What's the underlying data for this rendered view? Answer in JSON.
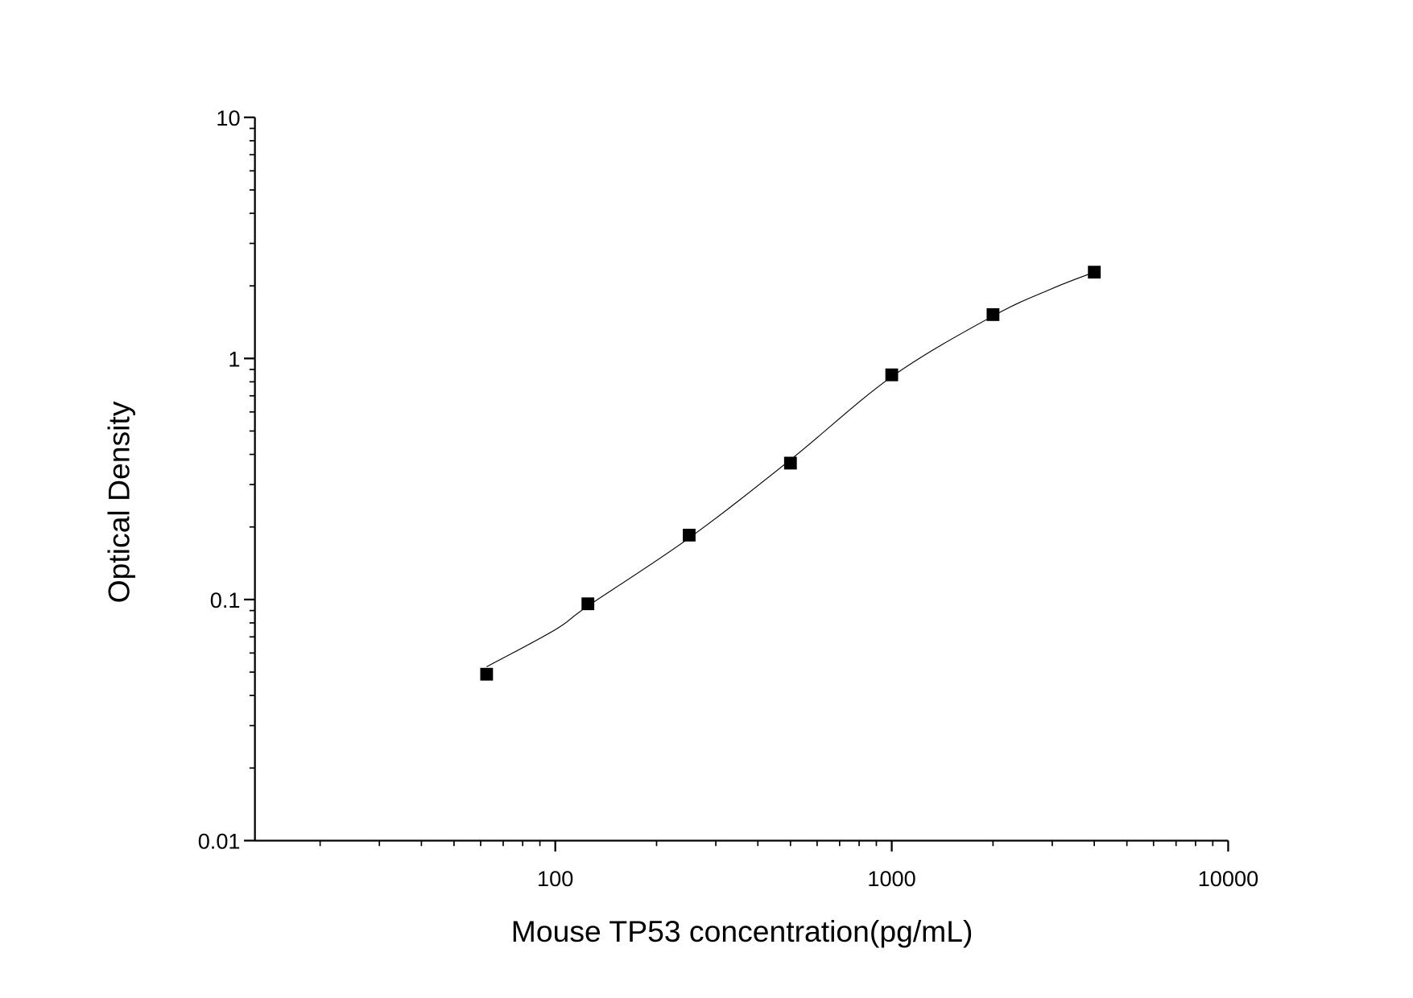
{
  "chart_data": {
    "type": "scatter",
    "x_label": "Mouse TP53 concentration(pg/mL)",
    "y_label": "Optical Density",
    "x": [
      62.5,
      125,
      250,
      500,
      1000,
      2000,
      4000
    ],
    "values": [
      0.049,
      0.096,
      0.185,
      0.368,
      0.855,
      1.52,
      2.28
    ],
    "color": "#000000",
    "curve": {
      "x": [
        62.5,
        100,
        125,
        250,
        500,
        1000,
        2000,
        3000,
        4000
      ],
      "values": [
        0.0526,
        0.075,
        0.094,
        0.18,
        0.38,
        0.84,
        1.5,
        1.95,
        2.28
      ]
    },
    "x_log": true,
    "y_log": true,
    "minor_ticks": true,
    "xlim": [
      12.8,
      10000
    ],
    "ylim": [
      0.01,
      10
    ],
    "xticks": [
      100,
      1000,
      10000
    ],
    "yticks": [
      0.01,
      0.1,
      1,
      10
    ]
  }
}
